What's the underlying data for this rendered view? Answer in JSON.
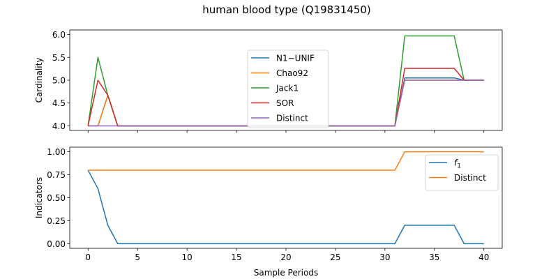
{
  "figure": {
    "title": "human blood type (Q19831450)"
  },
  "chart_data": [
    {
      "type": "line",
      "ylabel": "Cardinality",
      "xlabel": "",
      "xlim": [
        -1.85,
        41.85
      ],
      "ylim": [
        3.9,
        6.1
      ],
      "xticks": [
        0,
        5,
        10,
        15,
        20,
        25,
        30,
        35,
        40
      ],
      "yticks": [
        4.0,
        4.5,
        5.0,
        5.5,
        6.0
      ],
      "ytick_labels": [
        "4.0",
        "4.5",
        "5.0",
        "5.5",
        "6.0"
      ],
      "show_xtick_labels": false,
      "grid": false,
      "legend": {
        "position": "center"
      },
      "x": [
        0,
        1,
        2,
        3,
        4,
        5,
        6,
        7,
        8,
        9,
        10,
        11,
        12,
        13,
        14,
        15,
        16,
        17,
        18,
        19,
        20,
        21,
        22,
        23,
        24,
        25,
        26,
        27,
        28,
        29,
        30,
        31,
        32,
        33,
        34,
        35,
        36,
        37,
        38,
        39,
        40
      ],
      "series": [
        {
          "name": "N1−UNIF",
          "color": "#1f77b4",
          "values": [
            4,
            4,
            4.67,
            4,
            4,
            4,
            4,
            4,
            4,
            4,
            4,
            4,
            4,
            4,
            4,
            4,
            4,
            4,
            4,
            4,
            4,
            4,
            4,
            4,
            4,
            4,
            4,
            4,
            4,
            4,
            4,
            4,
            5.05,
            5.05,
            5.05,
            5.05,
            5.05,
            5.05,
            5.0,
            5.0,
            5.0
          ]
        },
        {
          "name": "Chao92",
          "color": "#ff7f0e",
          "values": [
            4,
            4,
            4.67,
            4,
            4,
            4,
            4,
            4,
            4,
            4,
            4,
            4,
            4,
            4,
            4,
            4,
            4,
            4,
            4,
            4,
            4,
            4,
            4,
            4,
            4,
            4,
            4,
            4,
            4,
            4,
            4,
            4,
            5.0,
            5.0,
            5.0,
            5.0,
            5.0,
            5.0,
            5.0,
            5.0,
            5.0
          ]
        },
        {
          "name": "Jack1",
          "color": "#2ca02c",
          "values": [
            4,
            5.5,
            4.67,
            4,
            4,
            4,
            4,
            4,
            4,
            4,
            4,
            4,
            4,
            4,
            4,
            4,
            4,
            4,
            4,
            4,
            4,
            4,
            4,
            4,
            4,
            4,
            4,
            4,
            4,
            4,
            4,
            4,
            5.97,
            5.97,
            5.97,
            5.97,
            5.97,
            5.97,
            5.0,
            5.0,
            5.0
          ]
        },
        {
          "name": "SOR",
          "color": "#d62728",
          "values": [
            4,
            5.0,
            4.67,
            4,
            4,
            4,
            4,
            4,
            4,
            4,
            4,
            4,
            4,
            4,
            4,
            4,
            4,
            4,
            4,
            4,
            4,
            4,
            4,
            4,
            4,
            4,
            4,
            4,
            4,
            4,
            4,
            4,
            5.26,
            5.26,
            5.26,
            5.26,
            5.26,
            5.26,
            5.0,
            5.0,
            5.0
          ]
        },
        {
          "name": "Distinct",
          "color": "#9467bd",
          "values": [
            4,
            4,
            4,
            4,
            4,
            4,
            4,
            4,
            4,
            4,
            4,
            4,
            4,
            4,
            4,
            4,
            4,
            4,
            4,
            4,
            4,
            4,
            4,
            4,
            4,
            4,
            4,
            4,
            4,
            4,
            4,
            4,
            5,
            5,
            5,
            5,
            5,
            5,
            5,
            5,
            5
          ]
        }
      ]
    },
    {
      "type": "line",
      "ylabel": "Indicators",
      "xlabel": "Sample Periods",
      "xlim": [
        -1.85,
        41.85
      ],
      "ylim": [
        -0.05,
        1.05
      ],
      "xticks": [
        0,
        5,
        10,
        15,
        20,
        25,
        30,
        35,
        40
      ],
      "yticks": [
        0.0,
        0.25,
        0.5,
        0.75,
        1.0
      ],
      "ytick_labels": [
        "0.00",
        "0.25",
        "0.50",
        "0.75",
        "1.00"
      ],
      "show_xtick_labels": true,
      "grid": false,
      "legend": {
        "position": "top-right"
      },
      "x": [
        0,
        1,
        2,
        3,
        4,
        5,
        6,
        7,
        8,
        9,
        10,
        11,
        12,
        13,
        14,
        15,
        16,
        17,
        18,
        19,
        20,
        21,
        22,
        23,
        24,
        25,
        26,
        27,
        28,
        29,
        30,
        31,
        32,
        33,
        34,
        35,
        36,
        37,
        38,
        39,
        40
      ],
      "series": [
        {
          "name": "f1",
          "label_main": "f",
          "label_sub": "1",
          "color": "#1f77b4",
          "values": [
            0.8,
            0.6,
            0.2,
            0,
            0,
            0,
            0,
            0,
            0,
            0,
            0,
            0,
            0,
            0,
            0,
            0,
            0,
            0,
            0,
            0,
            0,
            0,
            0,
            0,
            0,
            0,
            0,
            0,
            0,
            0,
            0,
            0,
            0.2,
            0.2,
            0.2,
            0.2,
            0.2,
            0.2,
            0,
            0,
            0
          ]
        },
        {
          "name": "Distinct",
          "color": "#ff7f0e",
          "values": [
            0.8,
            0.8,
            0.8,
            0.8,
            0.8,
            0.8,
            0.8,
            0.8,
            0.8,
            0.8,
            0.8,
            0.8,
            0.8,
            0.8,
            0.8,
            0.8,
            0.8,
            0.8,
            0.8,
            0.8,
            0.8,
            0.8,
            0.8,
            0.8,
            0.8,
            0.8,
            0.8,
            0.8,
            0.8,
            0.8,
            0.8,
            0.8,
            1,
            1,
            1,
            1,
            1,
            1,
            1,
            1,
            1
          ]
        }
      ]
    }
  ]
}
